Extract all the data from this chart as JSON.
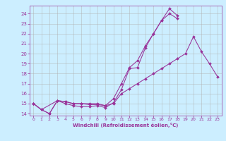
{
  "xlabel": "Windchill (Refroidissement éolien,°C)",
  "bg_color": "#cceeff",
  "grid_color": "#b0b0b0",
  "line_color": "#993399",
  "x_min": -0.5,
  "x_max": 23.5,
  "y_min": 13.8,
  "y_max": 24.8,
  "yticks": [
    14,
    15,
    16,
    17,
    18,
    19,
    20,
    21,
    22,
    23,
    24
  ],
  "xticks": [
    0,
    1,
    2,
    3,
    4,
    5,
    6,
    7,
    8,
    9,
    10,
    11,
    12,
    13,
    14,
    15,
    16,
    17,
    18,
    19,
    20,
    21,
    22,
    23
  ],
  "series1_x": [
    0,
    1,
    2,
    3,
    4,
    5,
    6,
    7,
    8,
    9,
    10,
    11,
    12,
    13,
    14,
    15,
    16,
    17,
    18
  ],
  "series1_y": [
    15.0,
    14.4,
    14.0,
    15.3,
    15.0,
    14.8,
    14.7,
    14.7,
    14.8,
    14.6,
    15.1,
    16.4,
    18.5,
    18.6,
    20.6,
    22.0,
    23.3,
    24.0,
    23.5
  ],
  "series2_x": [
    0,
    1,
    2,
    3,
    4,
    5,
    6,
    7,
    8,
    9,
    10,
    11,
    12,
    13,
    14,
    15,
    16,
    17,
    18
  ],
  "series2_y": [
    15.0,
    14.4,
    14.0,
    15.3,
    15.2,
    15.0,
    15.0,
    14.9,
    14.9,
    14.8,
    15.5,
    17.0,
    18.6,
    19.3,
    20.8,
    22.0,
    23.3,
    24.5,
    23.8
  ],
  "series3_x": [
    0,
    1,
    3,
    4,
    5,
    6,
    7,
    8,
    9,
    10,
    11,
    12,
    13,
    14,
    15,
    16,
    17,
    18,
    19,
    20,
    21,
    22,
    23
  ],
  "series3_y": [
    15.0,
    14.4,
    15.3,
    15.2,
    15.0,
    15.0,
    15.0,
    15.0,
    14.8,
    15.0,
    16.0,
    16.5,
    17.0,
    17.5,
    18.0,
    18.5,
    19.0,
    19.5,
    20.0,
    21.7,
    20.2,
    19.0,
    17.7
  ]
}
